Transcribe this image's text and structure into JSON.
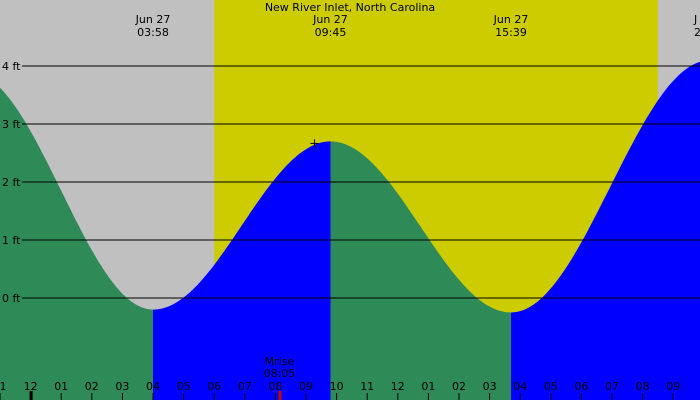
{
  "chart_data": {
    "type": "area",
    "title": "New River Inlet, North Carolina",
    "y_unit": "ft",
    "ylim": [
      -1.5,
      5.5
    ],
    "y_ticks": [
      0,
      1,
      2,
      3,
      4
    ],
    "y_tick_labels": [
      "0 ft",
      "1 ft",
      "2 ft",
      "3 ft",
      "4 ft"
    ],
    "x_range_hours": [
      23.0,
      33.9
    ],
    "hour_ticks": [
      {
        "h": 23,
        "label": "1"
      },
      {
        "h": 24,
        "label": "12"
      },
      {
        "h": 25,
        "label": "01"
      },
      {
        "h": 26,
        "label": "02"
      },
      {
        "h": 27,
        "label": "03"
      },
      {
        "h": 28,
        "label": "04"
      },
      {
        "h": 29,
        "label": "05"
      },
      {
        "h": 30,
        "label": "06"
      },
      {
        "h": 31,
        "label": "07"
      },
      {
        "h": 32,
        "label": "08"
      },
      {
        "h": 33,
        "label": "09"
      },
      {
        "h": 34,
        "label": "10"
      },
      {
        "h": 35,
        "label": "11"
      },
      {
        "h": 36,
        "label": "12"
      },
      {
        "h": 37,
        "label": "01"
      },
      {
        "h": 38,
        "label": "02"
      },
      {
        "h": 39,
        "label": "03"
      },
      {
        "h": 40,
        "label": "04"
      },
      {
        "h": 41,
        "label": "05"
      },
      {
        "h": 42,
        "label": "06"
      },
      {
        "h": 43,
        "label": "07"
      },
      {
        "h": 44,
        "label": "08"
      },
      {
        "h": 45,
        "label": "09"
      }
    ],
    "daylight": [
      {
        "start_h": 30.0,
        "end_h": 44.5
      }
    ],
    "tide_extremes": [
      {
        "h": 22.0,
        "level": 3.9,
        "type": "high"
      },
      {
        "h": 28.0,
        "level": -0.2,
        "type": "low",
        "date": "Jun 27",
        "time": "03:58"
      },
      {
        "h": 33.8,
        "level": 2.7,
        "type": "high",
        "date": "Jun 27",
        "time": "09:45"
      },
      {
        "h": 39.7,
        "level": -0.25,
        "type": "low",
        "date": "Jun 27",
        "time": "15:39"
      },
      {
        "h": 46.2,
        "level": 4.1,
        "type": "high",
        "date": "J",
        "time": "2"
      }
    ],
    "colors": {
      "night": "#c0c0c0",
      "day": "#cccc00",
      "falling": "#2e8b57",
      "rising": "#0000ff",
      "grid": "#000000",
      "moonrise": "#cc0000"
    },
    "moonrise": {
      "label": "Mrise",
      "time": "08:05",
      "h": 32.1
    }
  }
}
